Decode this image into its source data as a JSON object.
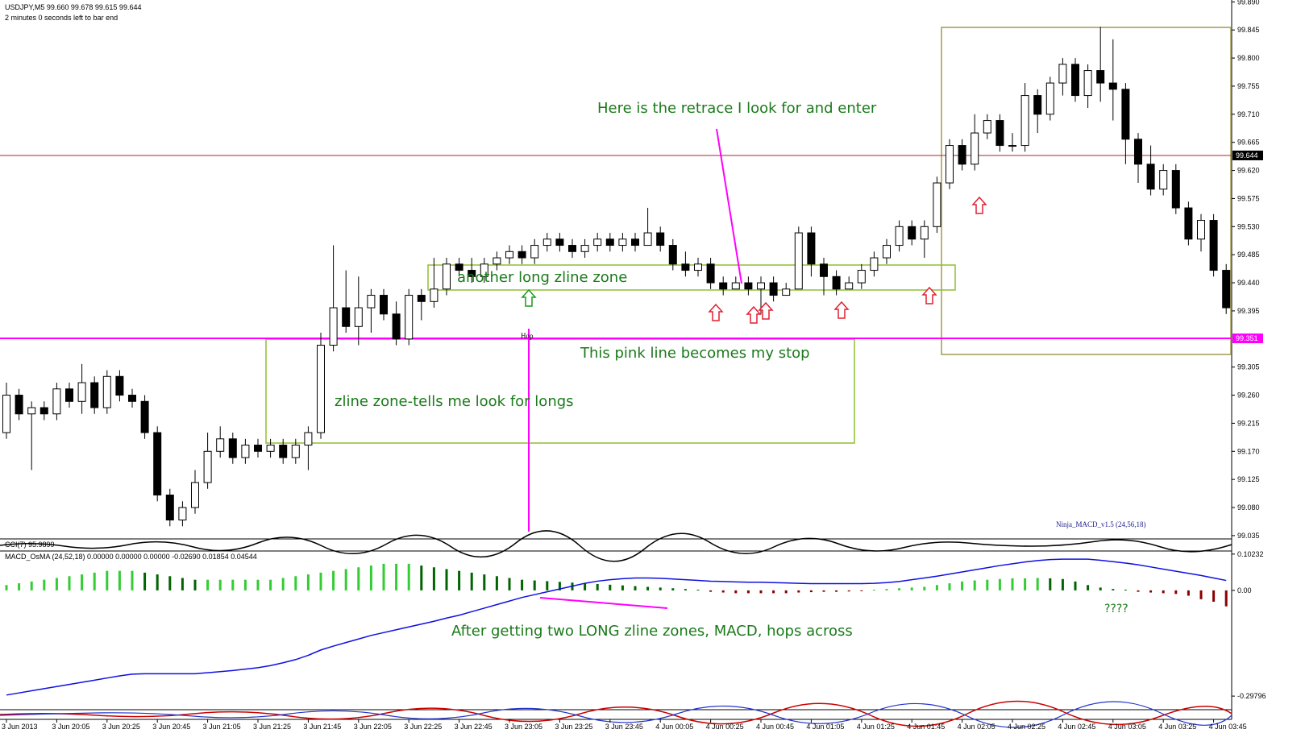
{
  "chart_data": [
    {
      "type": "candlestick",
      "title": "USDJPY,M5  99.660 99.678 99.615 99.644",
      "subtitle": "2 minutes 0 seconds left to bar end",
      "cci_label": "CCI(7) 95.9899",
      "categories": [
        "3 Jun 2013",
        null,
        null,
        null,
        "3 Jun 20:05",
        null,
        null,
        null,
        "3 Jun 20:25",
        null,
        null,
        null,
        "3 Jun 20:45",
        null,
        null,
        null,
        "3 Jun 21:05",
        null,
        null,
        null,
        "3 Jun 21:25",
        null,
        null,
        null,
        "3 Jun 21:45",
        null,
        null,
        null,
        "3 Jun 22:05",
        null,
        null,
        null,
        "3 Jun 22:25",
        null,
        null,
        null,
        "3 Jun 22:45",
        null,
        null,
        null,
        "3 Jun 23:05",
        null,
        null,
        null,
        "3 Jun 23:25",
        null,
        null,
        null,
        "3 Jun 23:45",
        null,
        null,
        null,
        "4 Jun 00:05",
        null,
        null,
        null,
        "4 Jun 00:25",
        null,
        null,
        null,
        "4 Jun 00:45",
        null,
        null,
        null,
        "4 Jun 01:05",
        null,
        null,
        null,
        "4 Jun 01:25",
        null,
        null,
        null,
        "4 Jun 01:45",
        null,
        null,
        null,
        "4 Jun 02:05",
        null,
        null,
        null,
        "4 Jun 02:25",
        null,
        null,
        null,
        "4 Jun 02:45",
        null,
        null,
        null,
        "4 Jun 03:05",
        null,
        null,
        null,
        "4 Jun 03:25",
        null,
        null,
        null,
        "4 Jun 03:45",
        null
      ],
      "open": [
        99.2,
        99.26,
        99.23,
        99.24,
        99.23,
        99.27,
        99.25,
        99.28,
        99.24,
        99.29,
        99.26,
        99.25,
        99.2,
        99.1,
        99.06,
        99.08,
        99.12,
        99.17,
        99.19,
        99.16,
        99.18,
        99.17,
        99.18,
        99.16,
        99.18,
        99.2,
        99.34,
        99.4,
        99.37,
        99.4,
        99.42,
        99.39,
        99.35,
        99.42,
        99.41,
        99.43,
        99.47,
        99.46,
        99.45,
        99.47,
        99.48,
        99.49,
        99.48,
        99.5,
        99.51,
        99.5,
        99.49,
        99.5,
        99.51,
        99.5,
        99.51,
        99.5,
        99.52,
        99.5,
        99.47,
        99.46,
        99.47,
        99.44,
        99.43,
        99.44,
        99.43,
        99.44,
        99.42,
        99.43,
        99.52,
        99.47,
        99.45,
        99.43,
        99.44,
        99.46,
        99.48,
        99.5,
        99.53,
        99.51,
        99.53,
        99.6,
        99.66,
        99.63,
        99.68,
        99.7,
        99.66,
        99.66,
        99.74,
        99.71,
        99.76,
        99.79,
        99.74,
        99.78,
        99.76,
        99.75,
        99.67,
        99.63,
        99.59,
        99.62,
        99.56,
        99.51,
        99.54,
        99.46
      ],
      "high": [
        99.28,
        99.27,
        99.25,
        99.25,
        99.28,
        99.28,
        99.31,
        99.29,
        99.3,
        99.3,
        99.27,
        99.26,
        99.21,
        99.11,
        99.09,
        99.14,
        99.2,
        99.21,
        99.2,
        99.19,
        99.19,
        99.19,
        99.19,
        99.19,
        99.21,
        99.36,
        99.5,
        99.46,
        99.45,
        99.43,
        99.43,
        99.41,
        99.43,
        99.43,
        99.48,
        99.48,
        99.48,
        99.48,
        99.48,
        99.49,
        99.5,
        99.5,
        99.51,
        99.52,
        99.52,
        99.51,
        99.51,
        99.52,
        99.52,
        99.52,
        99.52,
        99.56,
        99.53,
        99.51,
        99.49,
        99.48,
        99.48,
        99.45,
        99.45,
        99.45,
        99.45,
        99.45,
        99.44,
        99.53,
        99.53,
        99.48,
        99.46,
        99.45,
        99.47,
        99.49,
        99.51,
        99.54,
        99.54,
        99.54,
        99.61,
        99.67,
        99.67,
        99.71,
        99.71,
        99.71,
        99.68,
        99.76,
        99.75,
        99.77,
        99.8,
        99.8,
        99.79,
        99.85,
        99.83,
        99.76,
        99.68,
        99.66,
        99.63,
        99.63,
        99.57,
        99.55,
        99.55,
        99.47
      ],
      "low": [
        99.19,
        99.22,
        99.14,
        99.22,
        99.22,
        99.24,
        99.23,
        99.23,
        99.23,
        99.25,
        99.24,
        99.19,
        99.09,
        99.05,
        99.05,
        99.07,
        99.11,
        99.16,
        99.15,
        99.15,
        99.16,
        99.16,
        99.15,
        99.15,
        99.14,
        99.19,
        99.33,
        99.36,
        99.34,
        99.36,
        99.38,
        99.34,
        99.34,
        99.38,
        99.4,
        99.42,
        99.45,
        99.44,
        99.44,
        99.46,
        99.47,
        99.47,
        99.47,
        99.49,
        99.49,
        99.48,
        99.48,
        99.49,
        99.49,
        99.49,
        99.49,
        99.5,
        99.49,
        99.46,
        99.45,
        99.45,
        99.43,
        99.42,
        99.43,
        99.42,
        99.39,
        99.41,
        99.42,
        99.43,
        99.45,
        99.42,
        99.42,
        99.43,
        99.43,
        99.45,
        99.47,
        99.49,
        99.5,
        99.48,
        99.52,
        99.59,
        99.62,
        99.62,
        99.67,
        99.65,
        99.65,
        99.65,
        99.68,
        99.7,
        99.74,
        99.73,
        99.72,
        99.73,
        99.7,
        99.63,
        99.6,
        99.58,
        99.58,
        99.55,
        99.5,
        99.49,
        99.45,
        99.39
      ],
      "close": [
        99.26,
        99.23,
        99.24,
        99.23,
        99.27,
        99.25,
        99.28,
        99.24,
        99.29,
        99.26,
        99.25,
        99.2,
        99.1,
        99.06,
        99.08,
        99.12,
        99.17,
        99.19,
        99.16,
        99.18,
        99.17,
        99.18,
        99.16,
        99.18,
        99.2,
        99.34,
        99.4,
        99.37,
        99.4,
        99.42,
        99.39,
        99.35,
        99.42,
        99.41,
        99.43,
        99.47,
        99.46,
        99.45,
        99.47,
        99.48,
        99.49,
        99.48,
        99.5,
        99.51,
        99.5,
        99.49,
        99.5,
        99.51,
        99.5,
        99.51,
        99.5,
        99.52,
        99.5,
        99.47,
        99.46,
        99.47,
        99.44,
        99.43,
        99.44,
        99.43,
        99.44,
        99.42,
        99.43,
        99.52,
        99.47,
        99.45,
        99.43,
        99.44,
        99.46,
        99.48,
        99.5,
        99.53,
        99.51,
        99.53,
        99.6,
        99.66,
        99.63,
        99.68,
        99.7,
        99.66,
        99.66,
        99.74,
        99.71,
        99.76,
        99.79,
        99.74,
        99.78,
        99.76,
        99.75,
        99.67,
        99.63,
        99.59,
        99.62,
        99.56,
        99.51,
        99.54,
        99.46,
        99.4
      ],
      "up_color": "#ffffff",
      "down_color": "#000000",
      "ylim": [
        99.031,
        99.893
      ],
      "yticks": [
        {
          "value": 99.89,
          "label": "99.890"
        },
        99.845,
        {
          "value": 99.8,
          "label": "99.800"
        },
        99.755,
        {
          "value": 99.71,
          "label": "99.710"
        },
        99.665,
        {
          "value": 99.62,
          "label": "99.620"
        },
        99.575,
        {
          "value": 99.53,
          "label": "99.530"
        },
        99.485,
        {
          "value": 99.44,
          "label": "99.440"
        },
        99.395,
        99.305,
        {
          "value": 99.26,
          "label": "99.260"
        },
        99.215,
        {
          "value": 99.17,
          "label": "99.170"
        },
        99.125,
        {
          "value": 99.08,
          "label": "99.080"
        },
        99.035
      ],
      "hlines": [
        {
          "value": 99.644,
          "color": "#a52a2a",
          "box_color": "#000000"
        },
        {
          "value": 99.351,
          "color": "#ff00ff",
          "box_color": "#ff00ff"
        }
      ],
      "grid": false,
      "annotations": [
        "Here is the retrace I look for and enter",
        "another long zline zone",
        "This pink line becomes my stop",
        "zline zone-tells me look for longs",
        "Hop",
        "Ninja_MACD_v1.5 (24,56,18)"
      ]
    },
    {
      "type": "bar",
      "title": "MACD_OsMA (24,52,18) 0.00000 0.00000 0.00000 -0.02690 0.01854 0.04544",
      "ylim": [
        -0.334,
        0.111
      ],
      "yticks": [
        0.10232,
        {
          "value": 0,
          "label": "0.00"
        },
        -0.29796
      ],
      "rising_color": "#33cc33",
      "falling_color": "#006400",
      "negative_color": "#8b0000",
      "series": [
        {
          "values": [
            0.015,
            0.02,
            0.025,
            0.03,
            0.035,
            0.04,
            0.045,
            0.05,
            0.055,
            0.055,
            0.055,
            0.05,
            0.045,
            0.04,
            0.035,
            0.03,
            0.03,
            0.03,
            0.03,
            0.03,
            0.03,
            0.03,
            0.035,
            0.04,
            0.045,
            0.05,
            0.055,
            0.06,
            0.065,
            0.07,
            0.075,
            0.075,
            0.075,
            0.07,
            0.065,
            0.06,
            0.055,
            0.05,
            0.045,
            0.04,
            0.035,
            0.03,
            0.028,
            0.026,
            0.024,
            0.022,
            0.02,
            0.018,
            0.016,
            0.014,
            0.012,
            0.01,
            0.008,
            0.006,
            0.004,
            0.002,
            -0.004,
            -0.006,
            -0.008,
            -0.008,
            -0.008,
            -0.008,
            -0.008,
            -0.006,
            -0.005,
            -0.004,
            -0.004,
            -0.003,
            -0.002,
            0.002,
            0.004,
            0.006,
            0.008,
            0.01,
            0.015,
            0.02,
            0.025,
            0.028,
            0.03,
            0.032,
            0.034,
            0.034,
            0.035,
            0.034,
            0.032,
            0.025,
            0.015,
            0.008,
            0.004,
            0.002,
            -0.004,
            -0.006,
            -0.008,
            -0.01,
            -0.015,
            -0.025,
            -0.032,
            -0.045
          ]
        },
        {
          "type": "line",
          "color": "#1010e0",
          "values": [
            -0.295,
            -0.289,
            -0.283,
            -0.277,
            -0.271,
            -0.265,
            -0.259,
            -0.253,
            -0.247,
            -0.241,
            -0.236,
            -0.235,
            -0.235,
            -0.235,
            -0.235,
            -0.235,
            -0.232,
            -0.229,
            -0.226,
            -0.222,
            -0.218,
            -0.212,
            -0.204,
            -0.195,
            -0.183,
            -0.168,
            -0.157,
            -0.147,
            -0.137,
            -0.127,
            -0.119,
            -0.111,
            -0.103,
            -0.095,
            -0.087,
            -0.078,
            -0.07,
            -0.06,
            -0.05,
            -0.04,
            -0.03,
            -0.02,
            -0.012,
            -0.004,
            0.004,
            0.012,
            0.02,
            0.026,
            0.03,
            0.033,
            0.035,
            0.035,
            0.034,
            0.032,
            0.03,
            0.028,
            0.026,
            0.025,
            0.024,
            0.023,
            0.023,
            0.022,
            0.021,
            0.02,
            0.019,
            0.019,
            0.019,
            0.019,
            0.019,
            0.02,
            0.022,
            0.025,
            0.03,
            0.035,
            0.04,
            0.046,
            0.052,
            0.058,
            0.064,
            0.07,
            0.075,
            0.08,
            0.084,
            0.087,
            0.088,
            0.088,
            0.088,
            0.085,
            0.081,
            0.077,
            0.072,
            0.066,
            0.06,
            0.054,
            0.048,
            0.042,
            0.035,
            0.028
          ]
        }
      ],
      "annotations": [
        "After getting two LONG zline zones, MACD, hops across",
        "????"
      ]
    }
  ]
}
